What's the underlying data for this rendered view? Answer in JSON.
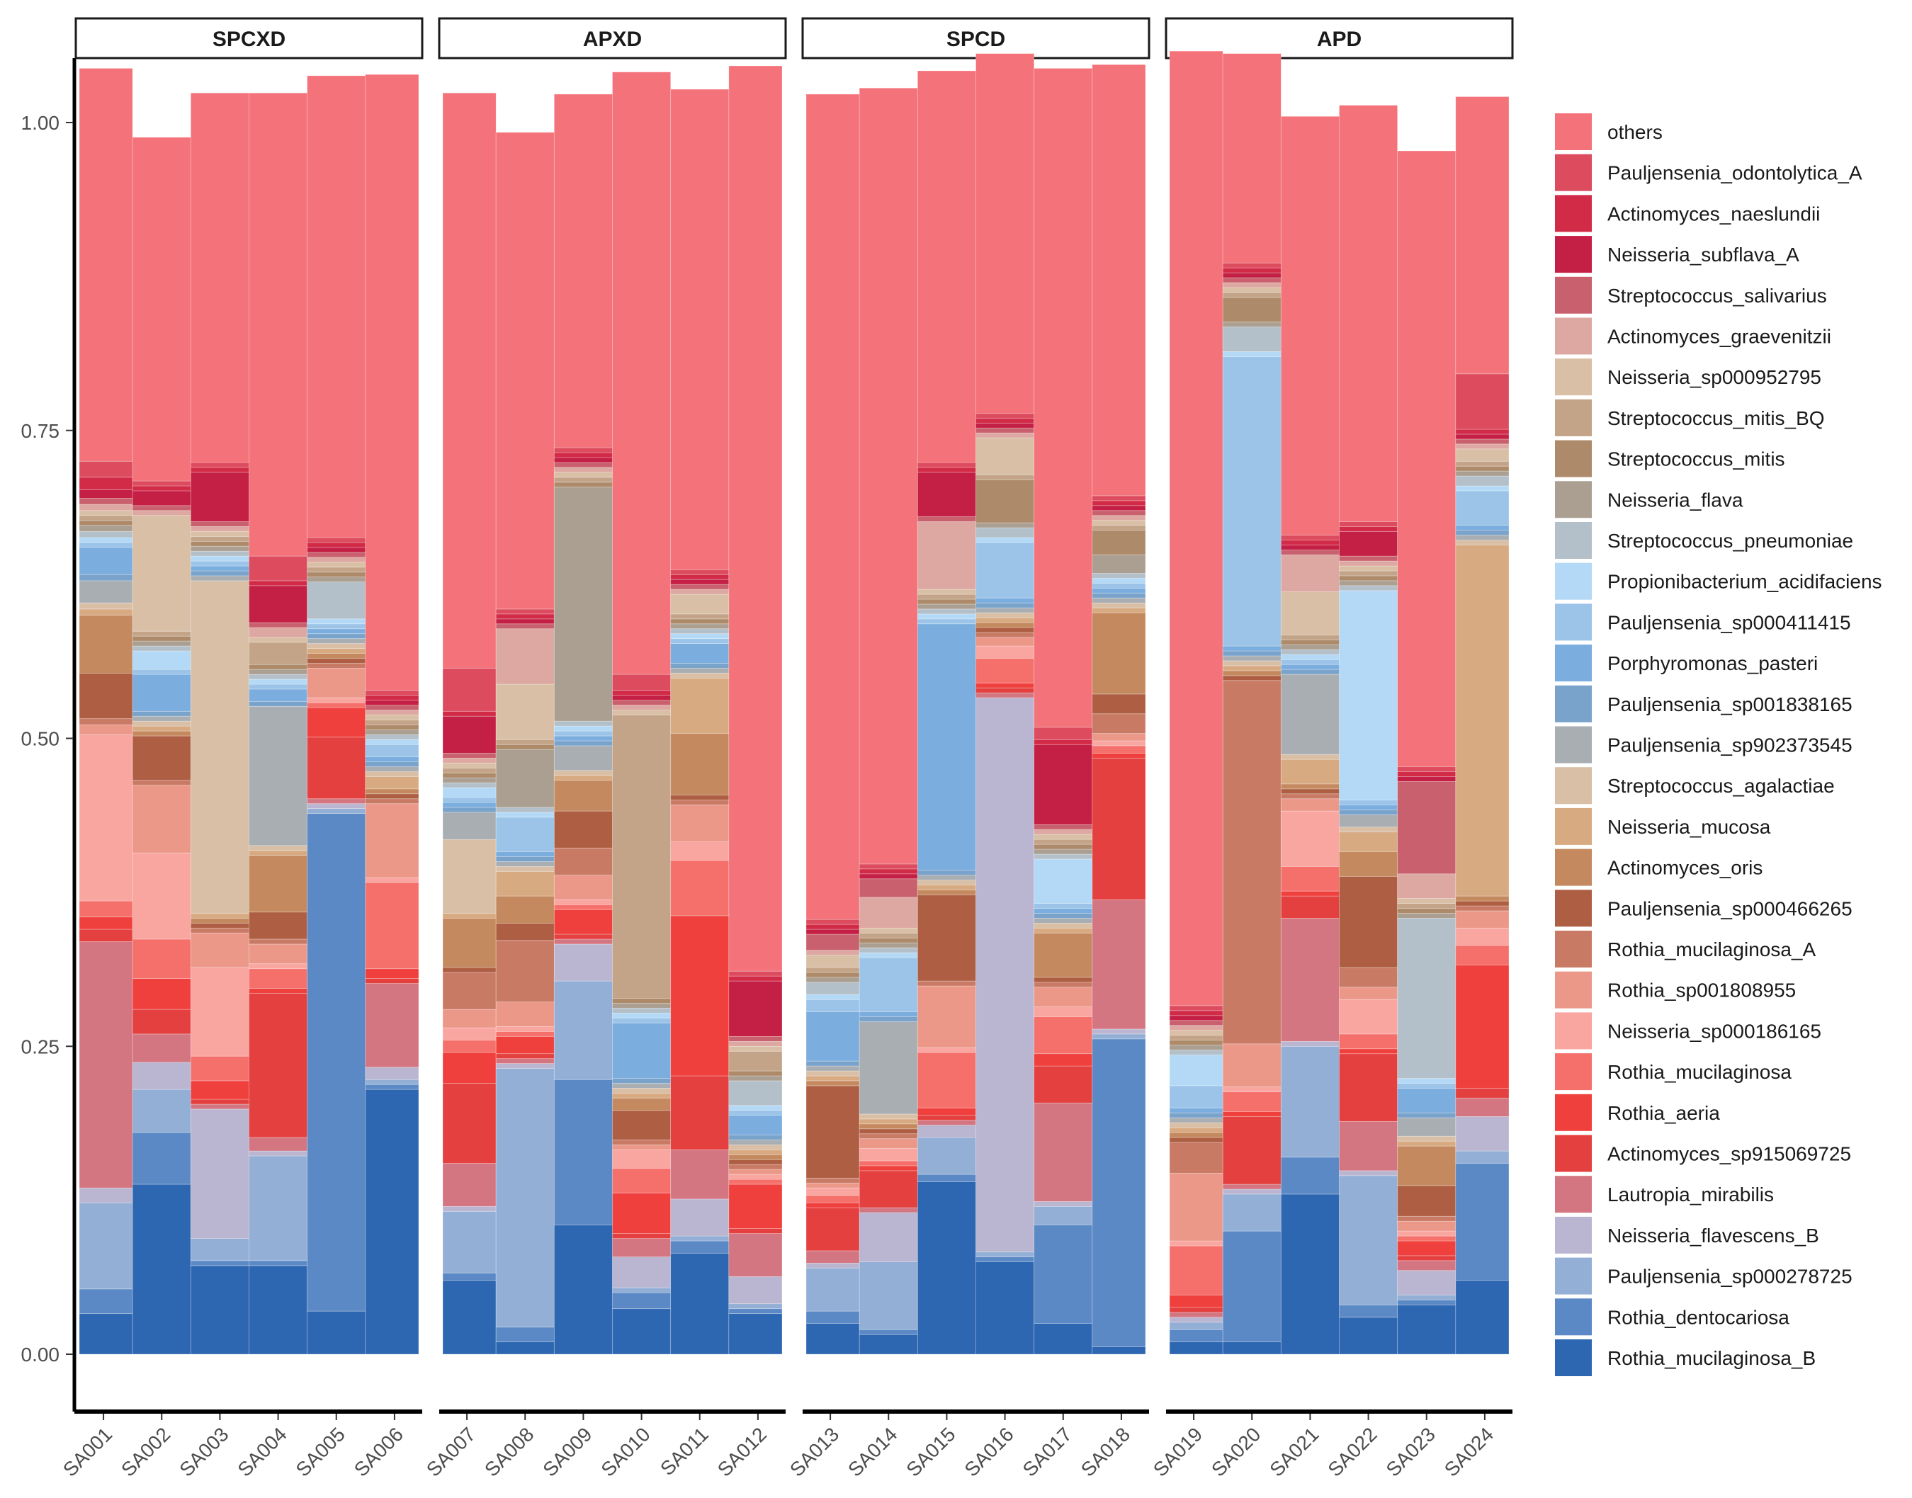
{
  "chart_data": {
    "type": "bar",
    "stacked": true,
    "title": "",
    "xlabel": "",
    "ylabel": "",
    "ylim": [
      0,
      1
    ],
    "y_ticks": [
      "0.00",
      "0.25",
      "0.50",
      "0.75",
      "1.00"
    ],
    "legend_position": "right",
    "facets": [
      {
        "label": "SPCXD",
        "samples": [
          "SA001",
          "SA002",
          "SA003",
          "SA004",
          "SA005",
          "SA006"
        ]
      },
      {
        "label": "APXD",
        "samples": [
          "SA007",
          "SA008",
          "SA009",
          "SA010",
          "SA011",
          "SA012"
        ]
      },
      {
        "label": "SPCD",
        "samples": [
          "SA013",
          "SA014",
          "SA015",
          "SA016",
          "SA017",
          "SA018"
        ]
      },
      {
        "label": "APD",
        "samples": [
          "SA019",
          "SA020",
          "SA021",
          "SA022",
          "SA023",
          "SA024"
        ]
      }
    ],
    "series": [
      {
        "name": "Rothia_mucilaginosa_B",
        "color": "#2e67b1"
      },
      {
        "name": "Rothia_dentocariosa",
        "color": "#5b89c5"
      },
      {
        "name": "Pauljensenia_sp000278725",
        "color": "#93afd6"
      },
      {
        "name": "Neisseria_flavescens_B",
        "color": "#bab6d1"
      },
      {
        "name": "Lautropia_mirabilis",
        "color": "#d37681"
      },
      {
        "name": "Actinomyces_sp915069725",
        "color": "#e3403f"
      },
      {
        "name": "Rothia_aeria",
        "color": "#f0403d"
      },
      {
        "name": "Rothia_mucilaginosa",
        "color": "#f5706b"
      },
      {
        "name": "Neisseria_sp000186165",
        "color": "#f9a5a0"
      },
      {
        "name": "Rothia_sp001808955",
        "color": "#eb9889"
      },
      {
        "name": "Rothia_mucilaginosa_A",
        "color": "#c97a65"
      },
      {
        "name": "Pauljensenia_sp000466265",
        "color": "#ae5f43"
      },
      {
        "name": "Actinomyces_oris",
        "color": "#c4895f"
      },
      {
        "name": "Neisseria_mucosa",
        "color": "#d8aa82"
      },
      {
        "name": "Streptococcus_agalactiae",
        "color": "#d8bfa6"
      },
      {
        "name": "Pauljensenia_sp902373545",
        "color": "#a9aeb3"
      },
      {
        "name": "Pauljensenia_sp001838165",
        "color": "#7aa3cb"
      },
      {
        "name": "Porphyromonas_pasteri",
        "color": "#7badde"
      },
      {
        "name": "Pauljensenia_sp000411415",
        "color": "#9cc4e8"
      },
      {
        "name": "Propionibacterium_acidifaciens",
        "color": "#b3d9f6"
      },
      {
        "name": "Streptococcus_pneumoniae",
        "color": "#b4c0c9"
      },
      {
        "name": "Neisseria_flava",
        "color": "#ab9f92"
      },
      {
        "name": "Streptococcus_mitis",
        "color": "#ad8b6a"
      },
      {
        "name": "Streptococcus_mitis_BQ",
        "color": "#c3a488"
      },
      {
        "name": "Neisseria_sp000952795",
        "color": "#d9bfa5"
      },
      {
        "name": "Actinomyces_graevenitzii",
        "color": "#dda8a1"
      },
      {
        "name": "Streptococcus_salivarius",
        "color": "#c9606d"
      },
      {
        "name": "Neisseria_subflava_A",
        "color": "#c41f44"
      },
      {
        "name": "Actinomyces_naeslundii",
        "color": "#d22b48"
      },
      {
        "name": "Pauljensenia_odontolytica_A",
        "color": "#dc4b5e"
      },
      {
        "name": "others",
        "color": "#f47279"
      }
    ],
    "legend_order": [
      "others",
      "Pauljensenia_odontolytica_A",
      "Actinomyces_naeslundii",
      "Neisseria_subflava_A",
      "Streptococcus_salivarius",
      "Actinomyces_graevenitzii",
      "Neisseria_sp000952795",
      "Streptococcus_mitis_BQ",
      "Streptococcus_mitis",
      "Neisseria_flava",
      "Streptococcus_pneumoniae",
      "Propionibacterium_acidifaciens",
      "Pauljensenia_sp000411415",
      "Porphyromonas_pasteri",
      "Pauljensenia_sp001838165",
      "Pauljensenia_sp902373545",
      "Streptococcus_agalactiae",
      "Neisseria_mucosa",
      "Actinomyces_oris",
      "Pauljensenia_sp000466265",
      "Rothia_mucilaginosa_A",
      "Rothia_sp001808955",
      "Neisseria_sp000186165",
      "Rothia_mucilaginosa",
      "Rothia_aeria",
      "Actinomyces_sp915069725",
      "Lautropia_mirabilis",
      "Neisseria_flavescens_B",
      "Pauljensenia_sp000278725",
      "Rothia_dentocariosa",
      "Rothia_mucilaginosa_B"
    ],
    "stacks": {
      "SA001": [
        0.033,
        0.02,
        0.07,
        0.012,
        0.2,
        0.01,
        0.01,
        0.013,
        0.135,
        0.008,
        0.005,
        0.037,
        0.047,
        0.005,
        0.005,
        0.018,
        0.005,
        0.022,
        0.004,
        0.004,
        0.005,
        0.005,
        0.004,
        0.004,
        0.004,
        0.005,
        0.005,
        0.007,
        0.01,
        0.013,
        0.319
      ],
      "SA002": [
        0.138,
        0.042,
        0.035,
        0.022,
        0.023,
        0.02,
        0.025,
        0.032,
        0.07,
        0.055,
        0.004,
        0.036,
        0.004,
        0.004,
        0.004,
        0.004,
        0.004,
        0.03,
        0.004,
        0.015,
        0.004,
        0.004,
        0.004,
        0.004,
        0.094,
        0.004,
        0.004,
        0.012,
        0.004,
        0.004,
        0.279
      ],
      "SA003": [
        0.072,
        0.004,
        0.018,
        0.105,
        0.004,
        0.004,
        0.015,
        0.02,
        0.072,
        0.028,
        0.004,
        0.004,
        0.004,
        0.004,
        0.27,
        0.004,
        0.004,
        0.004,
        0.004,
        0.004,
        0.004,
        0.004,
        0.004,
        0.004,
        0.004,
        0.004,
        0.004,
        0.04,
        0.004,
        0.004,
        0.3
      ],
      "SA004": [
        0.072,
        0.004,
        0.085,
        0.004,
        0.011,
        0.117,
        0.004,
        0.016,
        0.004,
        0.016,
        0.004,
        0.022,
        0.046,
        0.004,
        0.004,
        0.113,
        0.004,
        0.01,
        0.004,
        0.004,
        0.004,
        0.004,
        0.004,
        0.018,
        0.004,
        0.008,
        0.004,
        0.03,
        0.004,
        0.02,
        0.376
      ],
      "SA005": [
        0.035,
        0.404,
        0.004,
        0.004,
        0.004,
        0.05,
        0.024,
        0.004,
        0.004,
        0.024,
        0.004,
        0.004,
        0.004,
        0.004,
        0.004,
        0.004,
        0.004,
        0.004,
        0.004,
        0.004,
        0.03,
        0.004,
        0.004,
        0.004,
        0.004,
        0.004,
        0.004,
        0.004,
        0.004,
        0.004,
        0.375
      ],
      "SA006": [
        0.215,
        0.004,
        0.004,
        0.01,
        0.068,
        0.004,
        0.008,
        0.07,
        0.004,
        0.06,
        0.004,
        0.004,
        0.004,
        0.01,
        0.004,
        0.004,
        0.004,
        0.004,
        0.01,
        0.004,
        0.004,
        0.004,
        0.004,
        0.004,
        0.004,
        0.004,
        0.004,
        0.004,
        0.004,
        0.004,
        0.5
      ],
      "SA007": [
        0.06,
        0.006,
        0.05,
        0.004,
        0.035,
        0.065,
        0.025,
        0.01,
        0.01,
        0.015,
        0.03,
        0.004,
        0.04,
        0.004,
        0.06,
        0.022,
        0.004,
        0.004,
        0.004,
        0.008,
        0.004,
        0.004,
        0.004,
        0.004,
        0.004,
        0.004,
        0.004,
        0.03,
        0.004,
        0.035,
        0.467
      ],
      "SA008": [
        0.01,
        0.012,
        0.21,
        0.004,
        0.004,
        0.004,
        0.014,
        0.004,
        0.004,
        0.02,
        0.05,
        0.014,
        0.022,
        0.02,
        0.004,
        0.004,
        0.004,
        0.004,
        0.028,
        0.004,
        0.004,
        0.047,
        0.004,
        0.004,
        0.045,
        0.045,
        0.004,
        0.004,
        0.004,
        0.004,
        0.387
      ],
      "SA009": [
        0.105,
        0.118,
        0.08,
        0.03,
        0.004,
        0.004,
        0.02,
        0.004,
        0.004,
        0.02,
        0.022,
        0.03,
        0.025,
        0.004,
        0.004,
        0.02,
        0.004,
        0.004,
        0.004,
        0.004,
        0.004,
        0.19,
        0.004,
        0.004,
        0.004,
        0.004,
        0.004,
        0.004,
        0.004,
        0.004,
        0.287
      ],
      "SA010": [
        0.037,
        0.013,
        0.004,
        0.025,
        0.015,
        0.004,
        0.033,
        0.02,
        0.015,
        0.004,
        0.004,
        0.024,
        0.01,
        0.004,
        0.004,
        0.004,
        0.004,
        0.045,
        0.004,
        0.004,
        0.004,
        0.004,
        0.004,
        0.23,
        0.004,
        0.004,
        0.004,
        0.004,
        0.004,
        0.013,
        0.489
      ],
      "SA011": [
        0.082,
        0.01,
        0.004,
        0.03,
        0.04,
        0.06,
        0.13,
        0.045,
        0.015,
        0.03,
        0.004,
        0.004,
        0.05,
        0.045,
        0.004,
        0.004,
        0.004,
        0.016,
        0.004,
        0.004,
        0.004,
        0.004,
        0.004,
        0.004,
        0.016,
        0.004,
        0.004,
        0.004,
        0.004,
        0.004,
        0.39
      ],
      "SA012": [
        0.033,
        0.004,
        0.004,
        0.022,
        0.035,
        0.004,
        0.036,
        0.004,
        0.004,
        0.004,
        0.004,
        0.004,
        0.004,
        0.004,
        0.004,
        0.004,
        0.004,
        0.016,
        0.004,
        0.004,
        0.02,
        0.004,
        0.004,
        0.016,
        0.004,
        0.004,
        0.004,
        0.045,
        0.004,
        0.004,
        0.735
      ],
      "SA013": [
        0.025,
        0.01,
        0.035,
        0.004,
        0.01,
        0.035,
        0.004,
        0.006,
        0.006,
        0.004,
        0.004,
        0.075,
        0.004,
        0.004,
        0.004,
        0.004,
        0.004,
        0.04,
        0.01,
        0.004,
        0.01,
        0.004,
        0.004,
        0.004,
        0.01,
        0.004,
        0.013,
        0.004,
        0.004,
        0.004,
        0.67
      ],
      "SA014": [
        0.016,
        0.004,
        0.055,
        0.04,
        0.004,
        0.03,
        0.004,
        0.004,
        0.01,
        0.008,
        0.004,
        0.004,
        0.004,
        0.004,
        0.004,
        0.075,
        0.004,
        0.004,
        0.044,
        0.004,
        0.004,
        0.004,
        0.004,
        0.004,
        0.004,
        0.025,
        0.015,
        0.004,
        0.004,
        0.004,
        0.63
      ],
      "SA015": [
        0.14,
        0.006,
        0.03,
        0.01,
        0.004,
        0.004,
        0.006,
        0.045,
        0.004,
        0.05,
        0.004,
        0.07,
        0.004,
        0.004,
        0.004,
        0.004,
        0.004,
        0.2,
        0.004,
        0.004,
        0.004,
        0.004,
        0.004,
        0.004,
        0.004,
        0.055,
        0.004,
        0.036,
        0.004,
        0.004,
        0.318
      ],
      "SA016": [
        0.075,
        0.004,
        0.004,
        0.45,
        0.004,
        0.004,
        0.004,
        0.02,
        0.01,
        0.007,
        0.004,
        0.004,
        0.004,
        0.004,
        0.004,
        0.004,
        0.004,
        0.004,
        0.045,
        0.004,
        0.008,
        0.004,
        0.035,
        0.004,
        0.03,
        0.004,
        0.004,
        0.004,
        0.004,
        0.004,
        0.292
      ],
      "SA017": [
        0.025,
        0.08,
        0.015,
        0.004,
        0.08,
        0.03,
        0.01,
        0.03,
        0.008,
        0.016,
        0.004,
        0.004,
        0.036,
        0.004,
        0.004,
        0.004,
        0.004,
        0.004,
        0.004,
        0.036,
        0.004,
        0.004,
        0.004,
        0.004,
        0.004,
        0.004,
        0.004,
        0.065,
        0.004,
        0.01,
        0.535
      ],
      "SA018": [
        0.006,
        0.25,
        0.004,
        0.004,
        0.105,
        0.115,
        0.004,
        0.006,
        0.004,
        0.006,
        0.016,
        0.016,
        0.066,
        0.004,
        0.004,
        0.004,
        0.004,
        0.004,
        0.004,
        0.004,
        0.004,
        0.015,
        0.02,
        0.004,
        0.004,
        0.004,
        0.004,
        0.004,
        0.004,
        0.004,
        0.35
      ],
      "SA019": [
        0.01,
        0.01,
        0.006,
        0.004,
        0.004,
        0.004,
        0.01,
        0.04,
        0.004,
        0.055,
        0.025,
        0.004,
        0.004,
        0.004,
        0.004,
        0.004,
        0.004,
        0.004,
        0.018,
        0.025,
        0.004,
        0.004,
        0.004,
        0.004,
        0.004,
        0.004,
        0.004,
        0.004,
        0.004,
        0.004,
        0.775
      ],
      "SA020": [
        0.01,
        0.09,
        0.03,
        0.004,
        0.004,
        0.055,
        0.004,
        0.016,
        0.004,
        0.035,
        0.295,
        0.004,
        0.004,
        0.004,
        0.004,
        0.004,
        0.004,
        0.004,
        0.235,
        0.004,
        0.02,
        0.004,
        0.02,
        0.004,
        0.004,
        0.004,
        0.004,
        0.004,
        0.004,
        0.004,
        0.17
      ],
      "SA021": [
        0.13,
        0.03,
        0.09,
        0.004,
        0.1,
        0.018,
        0.004,
        0.02,
        0.045,
        0.01,
        0.004,
        0.004,
        0.004,
        0.02,
        0.004,
        0.065,
        0.004,
        0.004,
        0.004,
        0.004,
        0.004,
        0.004,
        0.004,
        0.004,
        0.035,
        0.03,
        0.004,
        0.004,
        0.004,
        0.004,
        0.34
      ],
      "SA022": [
        0.03,
        0.01,
        0.105,
        0.004,
        0.04,
        0.055,
        0.004,
        0.012,
        0.028,
        0.01,
        0.016,
        0.074,
        0.02,
        0.016,
        0.004,
        0.01,
        0.004,
        0.004,
        0.004,
        0.17,
        0.004,
        0.004,
        0.004,
        0.004,
        0.004,
        0.004,
        0.004,
        0.02,
        0.004,
        0.004,
        0.338
      ],
      "SA023": [
        0.04,
        0.004,
        0.004,
        0.02,
        0.008,
        0.004,
        0.012,
        0.004,
        0.004,
        0.008,
        0.004,
        0.025,
        0.032,
        0.004,
        0.004,
        0.015,
        0.004,
        0.02,
        0.004,
        0.004,
        0.13,
        0.004,
        0.004,
        0.004,
        0.004,
        0.02,
        0.075,
        0.004,
        0.004,
        0.004,
        0.5
      ],
      "SA024": [
        0.06,
        0.095,
        0.01,
        0.028,
        0.015,
        0.008,
        0.1,
        0.016,
        0.014,
        0.014,
        0.004,
        0.004,
        0.004,
        0.285,
        0.004,
        0.004,
        0.004,
        0.004,
        0.028,
        0.004,
        0.008,
        0.004,
        0.004,
        0.004,
        0.01,
        0.004,
        0.004,
        0.004,
        0.004,
        0.045,
        0.225
      ]
    }
  }
}
